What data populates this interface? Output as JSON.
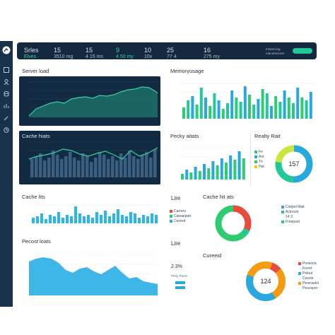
{
  "app": {
    "logo_icon": "gauge-logo-icon"
  },
  "sidebar": {
    "items": [
      {
        "icon": "dashboard-icon"
      },
      {
        "icon": "user-icon"
      },
      {
        "icon": "database-icon"
      },
      {
        "icon": "chart-icon"
      },
      {
        "icon": "pen-icon"
      },
      {
        "icon": "clock-icon"
      }
    ]
  },
  "topbar": {
    "stats": [
      {
        "value": "Srles",
        "sub": "Elves"
      },
      {
        "value": "15",
        "sub": "3510 mg"
      },
      {
        "value": "15",
        "sub": "4 15 ms"
      },
      {
        "value": "9",
        "sub": "4 50 my"
      },
      {
        "value": "10",
        "sub": "10x"
      },
      {
        "value": "25",
        "sub": "77 4"
      },
      {
        "value": "16",
        "sub": "275 my"
      }
    ],
    "right_text": "Instancing",
    "right_text2": "manufacturer",
    "button_label": ""
  },
  "colors": {
    "teal": "#20c997",
    "blue": "#29a8e0",
    "green": "#2ecc71",
    "yellow": "#f2c811",
    "red": "#e74c3c",
    "orange": "#f39c12",
    "navy": "#122b42",
    "line": "#35d3a0"
  },
  "cards": {
    "server_load": {
      "title": "Server load"
    },
    "memory_usage": {
      "title": "Memoryusage"
    },
    "cache_hits_area": {
      "title": "Cache hiats"
    },
    "peak_stats": {
      "title": "Pecky aitats"
    },
    "reality_rate": {
      "title": "Realty Rait",
      "center": "157",
      "legend": [
        "Fe",
        "Ast",
        "Tri",
        "Hat"
      ]
    },
    "cache_lits": {
      "title": "Cache lits"
    },
    "lire": {
      "title": "Lire",
      "items": [
        "Carreru",
        "Cawaepart",
        "Cereed"
      ]
    },
    "cache_hit_ats": {
      "title": "Cache hit ats",
      "legend": [
        "Coepel Mait",
        "Actrocet",
        "14 3 ",
        "Freepant"
      ]
    },
    "pecost_loats": {
      "title": "Pecost loats"
    },
    "small": {
      "title": "Lire",
      "value": "2.3%",
      "sub": "Perly Plerts",
      "items": [
        "",
        ""
      ]
    },
    "cureeid": {
      "title": "Cureeid",
      "center": "124",
      "legend": [
        "Preisoria",
        "Forret",
        "Pelout",
        "Cescte",
        "Pereraetol",
        "Peoceper"
      ]
    }
  }
}
